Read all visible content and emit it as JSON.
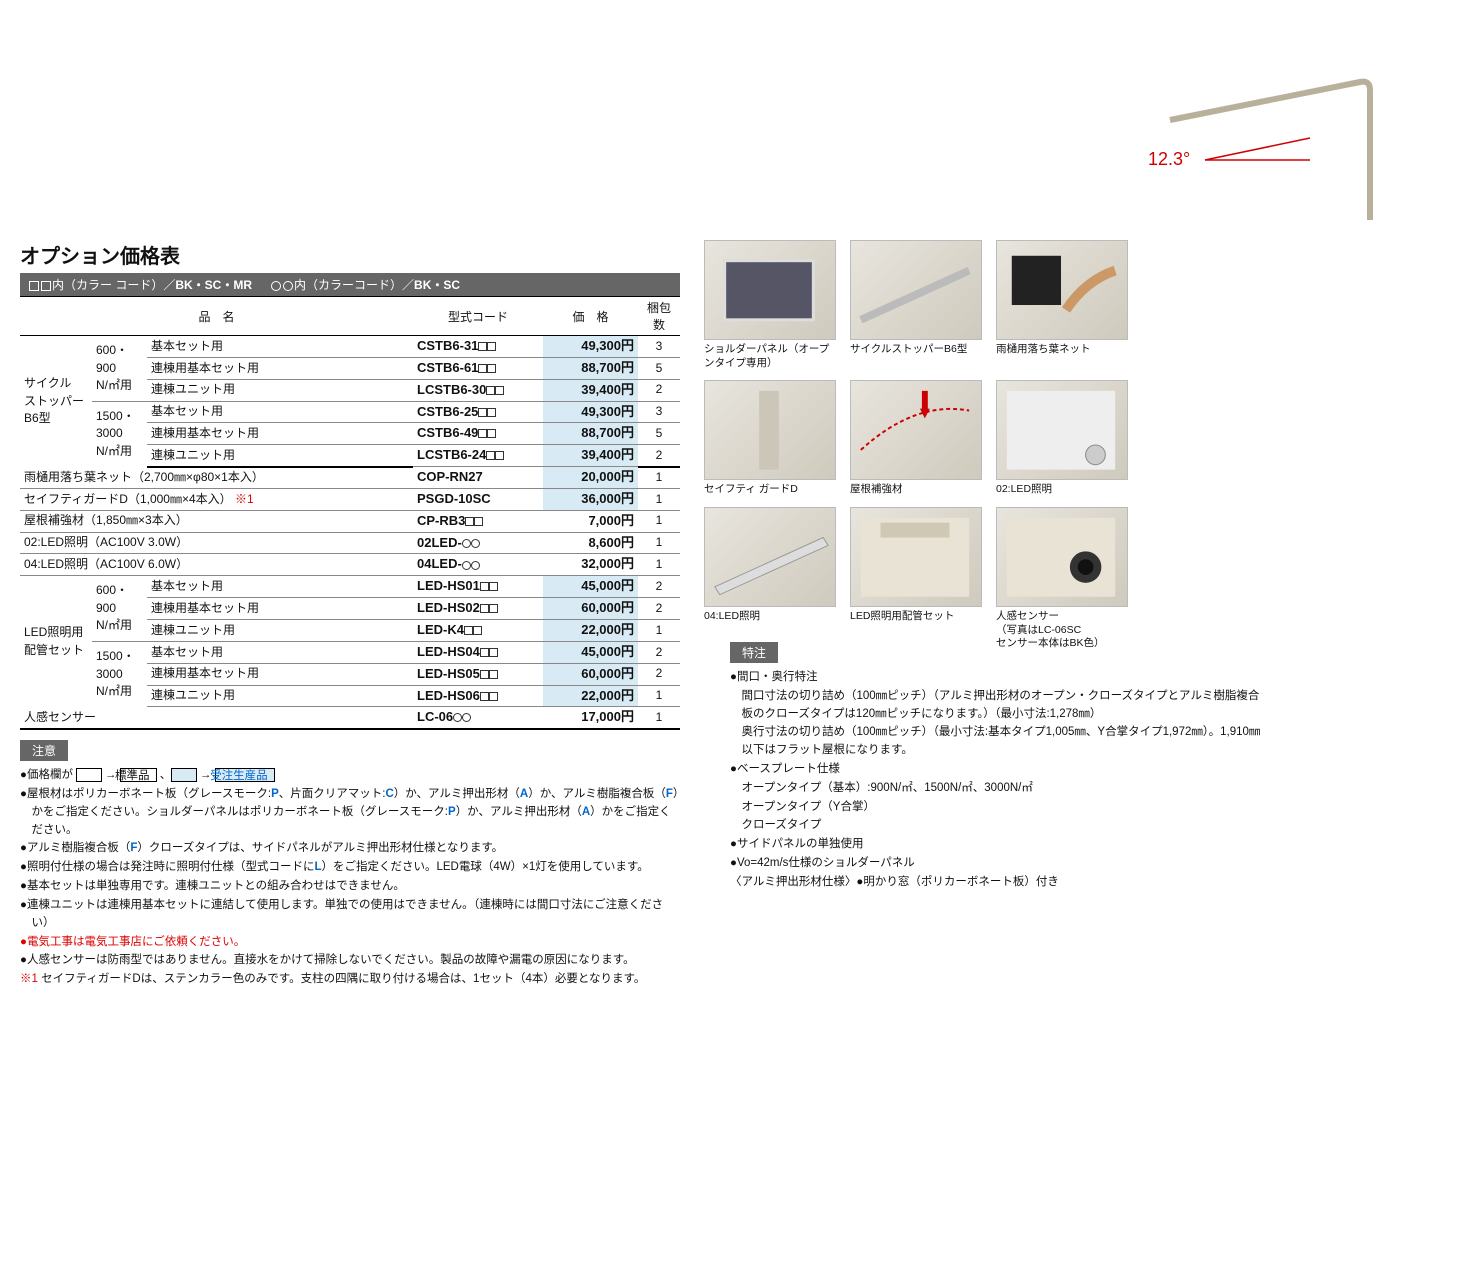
{
  "diagram": {
    "angle_label": "12.3°",
    "angle_color": "#d00000"
  },
  "title": "オプション価格表",
  "colorbar": {
    "sq_label": "内（カラー コード）／",
    "sq_codes": "BK・SC・MR",
    "circ_label": "内（カラーコード）／",
    "circ_codes": "BK・SC"
  },
  "headers": {
    "name": "品　名",
    "model": "型式コード",
    "price": "価　格",
    "qty": "梱包数"
  },
  "groups": [
    {
      "cat": "サイクル\nストッパー\nB6型",
      "sub1": "600・\n900\nN/㎡用",
      "sub2": "1500・\n3000\nN/㎡用",
      "rows1": [
        {
          "d": "基本セット用",
          "m": "CSTB6-31",
          "sq": true,
          "p": "49,300",
          "q": "3",
          "hl": true
        },
        {
          "d": "連棟用基本セット用",
          "m": "CSTB6-61",
          "sq": true,
          "p": "88,700",
          "q": "5",
          "hl": true
        },
        {
          "d": "連棟ユニット用",
          "m": "LCSTB6-30",
          "sq": true,
          "p": "39,400",
          "q": "2",
          "hl": true
        }
      ],
      "rows2": [
        {
          "d": "基本セット用",
          "m": "CSTB6-25",
          "sq": true,
          "p": "49,300",
          "q": "3",
          "hl": true
        },
        {
          "d": "連棟用基本セット用",
          "m": "CSTB6-49",
          "sq": true,
          "p": "88,700",
          "q": "5",
          "hl": true
        },
        {
          "d": "連棟ユニット用",
          "m": "LCSTB6-24",
          "sq": true,
          "p": "39,400",
          "q": "2",
          "hl": true
        }
      ]
    }
  ],
  "simple_rows": [
    {
      "d": "雨樋用落ち葉ネット（2,700㎜×φ80×1本入）",
      "m": "COP-RN27",
      "p": "20,000",
      "q": "1",
      "hl": true
    },
    {
      "d": "セイフティガードD（1,000㎜×4本入）",
      "note": " ※1",
      "m": "PSGD-10SC",
      "p": "36,000",
      "q": "1",
      "hl": true
    },
    {
      "d": "屋根補強材（1,850㎜×3本入）",
      "m": "CP-RB3",
      "sq": true,
      "p": "7,000",
      "q": "1"
    },
    {
      "d": "02:LED照明（AC100V 3.0W）",
      "m": "02LED-",
      "circ": true,
      "p": "8,600",
      "q": "1"
    },
    {
      "d": "04:LED照明（AC100V 6.0W）",
      "m": "04LED-",
      "circ": true,
      "p": "32,000",
      "q": "1"
    }
  ],
  "led_group": {
    "cat": "LED照明用\n配管セット",
    "sub1": "600・\n900\nN/㎡用",
    "sub2": "1500・\n3000\nN/㎡用",
    "rows1": [
      {
        "d": "基本セット用",
        "m": "LED-HS01",
        "sq": true,
        "p": "45,000",
        "q": "2",
        "hl": true
      },
      {
        "d": "連棟用基本セット用",
        "m": "LED-HS02",
        "sq": true,
        "p": "60,000",
        "q": "2",
        "hl": true
      },
      {
        "d": "連棟ユニット用",
        "m": "LED-K4",
        "sq": true,
        "p": "22,000",
        "q": "1",
        "hl": true
      }
    ],
    "rows2": [
      {
        "d": "基本セット用",
        "m": "LED-HS04",
        "sq": true,
        "p": "45,000",
        "q": "2",
        "hl": true
      },
      {
        "d": "連棟用基本セット用",
        "m": "LED-HS05",
        "sq": true,
        "p": "60,000",
        "q": "2",
        "hl": true
      },
      {
        "d": "連棟ユニット用",
        "m": "LED-HS06",
        "sq": true,
        "p": "22,000",
        "q": "1",
        "hl": true
      }
    ]
  },
  "last_row": {
    "d": "人感センサー",
    "m": "LC-06",
    "circ": true,
    "p": "17,000",
    "q": "1"
  },
  "caution_title": "注意",
  "caution": [
    "●価格欄が [   ] → [標準品] 、[   ] → [受注生産品]",
    "●屋根材はポリカーボネート板（グレースモーク:P、片面クリアマット:C）か、アルミ押出形材（A）か、アルミ樹脂複合板（F）かをご指定ください。ショルダーパネルはポリカーボネート板（グレースモーク:P）か、アルミ押出形材（A）かをご指定ください。",
    "●アルミ樹脂複合板（F）クローズタイプは、サイドパネルがアルミ押出形材仕様となります。",
    "●照明付仕様の場合は発注時に照明付仕様（型式コードにL）をご指定ください。LED電球（4W）×1灯を使用しています。",
    "●基本セットは単独専用です。連棟ユニットとの組み合わせはできません。",
    "●連棟ユニットは連棟用基本セットに連結して使用します。単独での使用はできません。（連棟時には間口寸法にご注意ください）",
    "●電気工事は電気工事店にご依頼ください。",
    "●人感センサーは防雨型ではありません。直接水をかけて掃除しないでください。製品の故障や漏電の原因になります。",
    "※1 セイフティガードDは、ステンカラー色のみです。支柱の四隅に取り付ける場合は、1セット（4本）必要となります。"
  ],
  "spec_title": "特注",
  "spec": [
    "●間口・奥行特注",
    "　間口寸法の切り詰め（100㎜ピッチ）（アルミ押出形材のオープン・クローズタイプとアルミ樹脂複合板のクローズタイプは120㎜ピッチになります。）（最小寸法:1,278㎜）",
    "　奥行寸法の切り詰め（100㎜ピッチ）（最小寸法:基本タイプ1,005㎜、Y合掌タイプ1,972㎜）。1,910㎜以下はフラット屋根になります。",
    "●ベースプレート仕様",
    "　オープンタイプ（基本）:900N/㎡、1500N/㎡、3000N/㎡",
    "　オープンタイプ（Y合掌）",
    "　クローズタイプ",
    "●サイドパネルの単独使用",
    "●Vo=42m/s仕様のショルダーパネル",
    "〈アルミ押出形材仕様〉●明かり窓（ポリカーボネート板）付き"
  ],
  "thumbs": [
    {
      "cap": "ショルダーパネル（オープンタイプ専用）"
    },
    {
      "cap": "サイクルストッパーB6型"
    },
    {
      "cap": "雨樋用落ち葉ネット"
    },
    {
      "cap": "セイフティ ガードD"
    },
    {
      "cap": "屋根補強材"
    },
    {
      "cap": "02:LED照明"
    },
    {
      "cap": "04:LED照明"
    },
    {
      "cap": "LED照明用配管セット"
    },
    {
      "cap": "人感センサー\n（写真はLC-06SC\nセンサー本体はBK色）"
    }
  ]
}
